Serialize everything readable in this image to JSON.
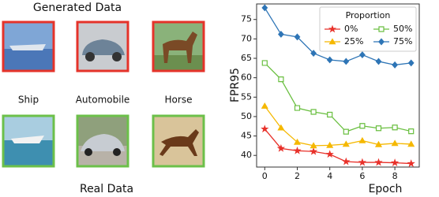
{
  "panel": {
    "top_caption": "Generated Data",
    "bottom_caption": "Real Data",
    "labels": [
      "Ship",
      "Automobile",
      "Horse"
    ]
  },
  "chart_data": {
    "type": "line",
    "xlabel": "Epoch",
    "ylabel": "FPR95",
    "legend_title": "Proportion",
    "legend": "upper right",
    "x": [
      0,
      1,
      2,
      3,
      4,
      5,
      6,
      7,
      8,
      9
    ],
    "xlim": [
      -0.5,
      9.5
    ],
    "xticks": [
      0,
      2,
      4,
      6,
      8
    ],
    "ylim": [
      37,
      79
    ],
    "yticks": [
      40,
      45,
      50,
      55,
      60,
      65,
      70,
      75
    ],
    "series": [
      {
        "name": "0%",
        "color": "#e8312a",
        "marker": "star",
        "values": [
          46.8,
          41.8,
          41.2,
          41.0,
          40.3,
          38.4,
          38.2,
          38.2,
          38.1,
          37.9
        ]
      },
      {
        "name": "25%",
        "color": "#f5b800",
        "marker": "triangle",
        "values": [
          52.7,
          47.1,
          43.4,
          42.5,
          42.6,
          42.9,
          43.8,
          42.8,
          43.1,
          42.9
        ]
      },
      {
        "name": "50%",
        "color": "#6abf40",
        "marker": "square",
        "values": [
          63.8,
          59.6,
          52.2,
          51.2,
          50.5,
          46.1,
          47.6,
          47.0,
          47.2,
          46.2
        ]
      },
      {
        "name": "75%",
        "color": "#2e75b6",
        "marker": "diamond",
        "values": [
          78.0,
          71.2,
          70.5,
          66.3,
          64.6,
          64.2,
          65.9,
          64.2,
          63.3,
          63.8
        ]
      }
    ]
  }
}
